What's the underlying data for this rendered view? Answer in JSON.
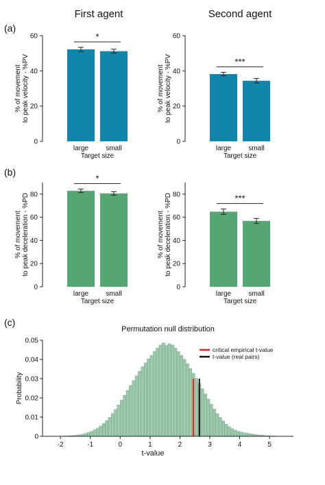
{
  "column_titles": [
    "First agent",
    "Second agent"
  ],
  "panel_labels": [
    "(a)",
    "(b)",
    "(c)"
  ],
  "colors": {
    "blue_bars": "#0e87ab",
    "green_bars": "#56a673",
    "hist_fill": "#9cc8ac",
    "hist_edge": "#6e9a7e",
    "critical_line": "#e0211e",
    "real_line": "#111111"
  },
  "chart_data": [
    {
      "type": "bar",
      "panel": "(a)",
      "title": "First agent",
      "categories": [
        "large",
        "small"
      ],
      "values": [
        52.2,
        51.2
      ],
      "errors": [
        1.2,
        1.1
      ],
      "ylabel_lines": [
        "% of movement",
        "to peak velocity - %PV"
      ],
      "xlabel": "Target size",
      "ylim": [
        0,
        60
      ],
      "yticks": [
        0,
        20,
        40,
        60
      ],
      "significance": "*",
      "color": "#0e87ab"
    },
    {
      "type": "bar",
      "panel": "(a)",
      "title": "Second agent",
      "categories": [
        "large",
        "small"
      ],
      "values": [
        38.2,
        34.4
      ],
      "errors": [
        1.0,
        1.3
      ],
      "ylabel_lines": [
        "% of movement",
        "to peak velocity - %PV"
      ],
      "xlabel": "Target size",
      "ylim": [
        0,
        60
      ],
      "yticks": [
        0,
        20,
        40,
        60
      ],
      "significance": "***",
      "color": "#0e87ab"
    },
    {
      "type": "bar",
      "panel": "(b)",
      "categories": [
        "large",
        "small"
      ],
      "values": [
        82.8,
        80.6
      ],
      "errors": [
        1.5,
        1.5
      ],
      "ylabel_lines": [
        "% of movement",
        "to peak deceleration - %PD"
      ],
      "xlabel": "Target size",
      "ylim": [
        0,
        90
      ],
      "yticks": [
        0,
        20,
        40,
        60,
        80
      ],
      "significance": "*",
      "color": "#56a673"
    },
    {
      "type": "bar",
      "panel": "(b)",
      "categories": [
        "large",
        "small"
      ],
      "values": [
        64.8,
        56.8
      ],
      "errors": [
        2.3,
        2.2
      ],
      "ylabel_lines": [
        "% of movement",
        "to peak deceleration - %PD"
      ],
      "xlabel": "Target size",
      "ylim": [
        0,
        90
      ],
      "yticks": [
        0,
        20,
        40,
        60,
        80
      ],
      "significance": "***",
      "color": "#56a673"
    },
    {
      "type": "histogram",
      "panel": "(c)",
      "title": "Permutation null distribution",
      "xlabel": "t-value",
      "ylabel": "Probability",
      "xlim": [
        -2.6,
        5.8
      ],
      "ylim": [
        0,
        0.05
      ],
      "xticks": [
        -2,
        -1,
        0,
        1,
        2,
        3,
        4,
        5
      ],
      "yticks": [
        0,
        0.01,
        0.02,
        0.03,
        0.04,
        0.05
      ],
      "ytick_labels": [
        "0",
        "0.01",
        "0.02",
        "0.03",
        "0.04",
        "0.05"
      ],
      "bin_start": -2.6,
      "bin_width": 0.1,
      "probabilities": [
        0,
        0,
        0,
        0,
        0,
        0,
        0.0001,
        0.0002,
        0.0002,
        0.0003,
        0.0004,
        0.0006,
        0.0008,
        0.0011,
        0.0015,
        0.002,
        0.0026,
        0.0034,
        0.0043,
        0.0054,
        0.0067,
        0.0082,
        0.0099,
        0.0119,
        0.014,
        0.0163,
        0.0188,
        0.0213,
        0.0239,
        0.0265,
        0.029,
        0.0315,
        0.0338,
        0.0362,
        0.0382,
        0.0403,
        0.0421,
        0.0441,
        0.0459,
        0.0475,
        0.0486,
        0.0473,
        0.0482,
        0.0475,
        0.0459,
        0.0441,
        0.0421,
        0.0401,
        0.0378,
        0.0353,
        0.0328,
        0.0302,
        0.0275,
        0.0248,
        0.0221,
        0.0194,
        0.0167,
        0.0142,
        0.0118,
        0.0098,
        0.008,
        0.0063,
        0.005,
        0.004,
        0.0032,
        0.0026,
        0.0022,
        0.0019,
        0.0016,
        0.0013,
        0.0011,
        0.0009,
        0.0007,
        0.0006,
        0.0004,
        0.0003,
        0.0002,
        0.0002,
        0.0001,
        0.0001,
        0.0001,
        0.0001,
        0,
        0,
        0
      ],
      "lines": [
        {
          "name": "critical empirical t-value",
          "x": 2.45,
          "height": 0.03,
          "color": "#e0211e"
        },
        {
          "name": "t-value (real pairs)",
          "x": 2.65,
          "height": 0.03,
          "color": "#111111"
        }
      ],
      "legend": "top-right"
    }
  ]
}
